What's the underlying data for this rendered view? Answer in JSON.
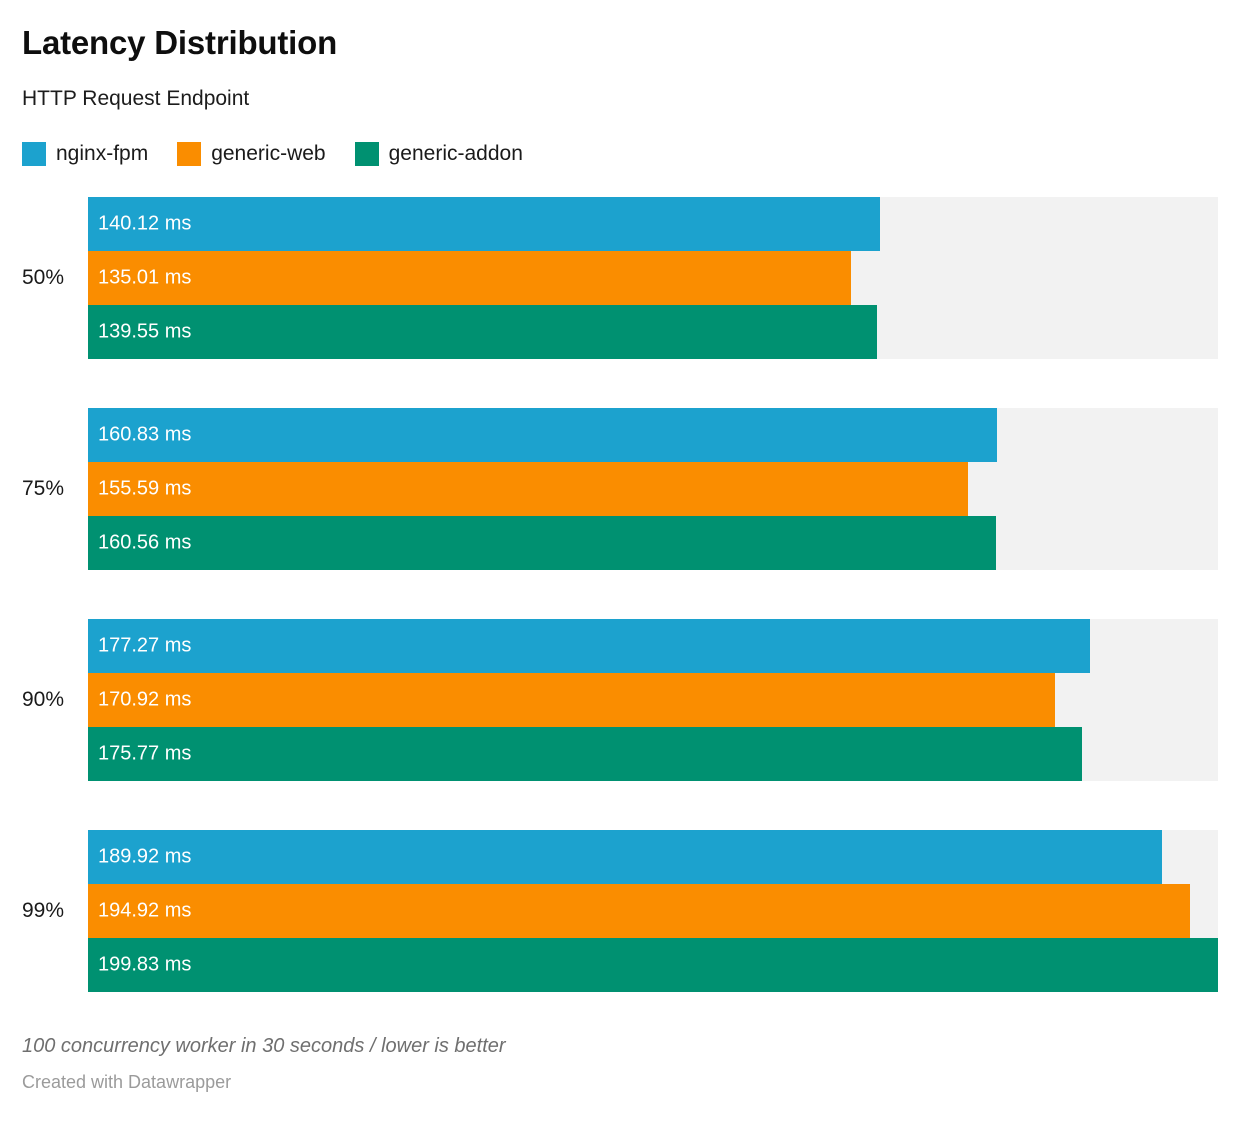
{
  "header": {
    "title": "Latency Distribution",
    "subtitle": "HTTP Request Endpoint"
  },
  "legend": {
    "items": [
      {
        "label": "nginx-fpm",
        "color": "#1CA2CE"
      },
      {
        "label": "generic-web",
        "color": "#FA8D00"
      },
      {
        "label": "generic-addon",
        "color": "#009171"
      }
    ]
  },
  "chart_data": {
    "type": "bar",
    "orientation": "horizontal",
    "title": "Latency Distribution",
    "subtitle": "HTTP Request Endpoint",
    "xlabel": "latency (ms)",
    "ylabel": "percentile",
    "unit": "ms",
    "value_suffix": " ms",
    "xlim": [
      0,
      199.83
    ],
    "grid": false,
    "legend_position": "top",
    "track_color": "#F2F2F2",
    "categories": [
      "50%",
      "75%",
      "90%",
      "99%"
    ],
    "series": [
      {
        "name": "nginx-fpm",
        "color": "#1CA2CE",
        "values": [
          140.12,
          160.83,
          177.27,
          189.92
        ],
        "labels": [
          "140.12 ms",
          "160.83 ms",
          "177.27 ms",
          "189.92 ms"
        ]
      },
      {
        "name": "generic-web",
        "color": "#FA8D00",
        "values": [
          135.01,
          155.59,
          170.92,
          194.92
        ],
        "labels": [
          "135.01 ms",
          "155.59 ms",
          "170.92 ms",
          "194.92 ms"
        ]
      },
      {
        "name": "generic-addon",
        "color": "#009171",
        "values": [
          139.55,
          160.56,
          175.77,
          199.83
        ],
        "labels": [
          "139.55 ms",
          "160.56 ms",
          "175.77 ms",
          "199.83 ms"
        ]
      }
    ]
  },
  "footer": {
    "note": "100 concurrency worker in 30 seconds / lower is better",
    "attribution": "Created with Datawrapper"
  }
}
